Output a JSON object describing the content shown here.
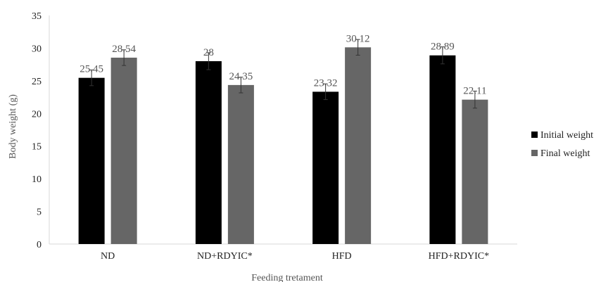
{
  "chart_data": {
    "type": "bar",
    "title": "",
    "xlabel": "Feeding tretament",
    "ylabel": "Body weight (g)",
    "ylim": [
      0,
      35
    ],
    "yticks": [
      0,
      5,
      10,
      15,
      20,
      25,
      30,
      35
    ],
    "grid": false,
    "legend_position": "right",
    "categories": [
      "ND",
      "ND+RDYIC*",
      "HFD",
      "HFD+RDYIC*"
    ],
    "series": [
      {
        "name": "Initial weight",
        "color": "#000000",
        "values": [
          25.45,
          28,
          23.32,
          28.89
        ],
        "labels": [
          "25.45",
          "28",
          "23.32",
          "28.89"
        ],
        "error": [
          1.2,
          1.3,
          1.2,
          1.3
        ]
      },
      {
        "name": "Final weight",
        "color": "#666666",
        "values": [
          28.54,
          24.35,
          30.12,
          22.11
        ],
        "labels": [
          "28.54",
          "24.35",
          "30.12",
          "22.11"
        ],
        "error": [
          1.2,
          1.2,
          1.2,
          1.3
        ]
      }
    ]
  }
}
